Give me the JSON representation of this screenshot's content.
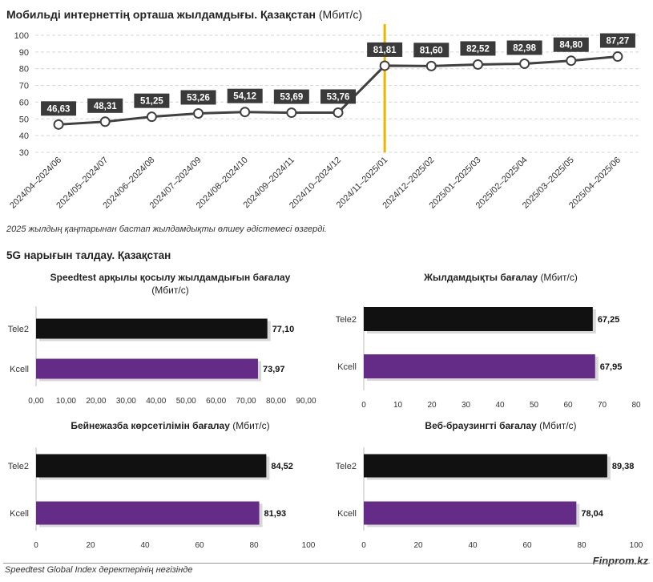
{
  "main_title": "Мобильді интернеттің орташа жылдамдығы. Қазақстан",
  "main_title_unit": "(Мбит/с)",
  "note": "2025 жылдың қаңтарынан бастап жылдамдықты өлшеу әдістемесі өзгерді.",
  "section_title": "5G нарығын талдау. Қазақстан",
  "source": "Speedtest Global Index деректерінің негізінде",
  "brand": "Finprom.kz",
  "colors": {
    "line": "#404040",
    "marker_line": "#f0b400",
    "tele2": "#111111",
    "kcell": "#652c87"
  },
  "chart_data": [
    {
      "type": "line",
      "title": "Мобильді интернеттің орташа жылдамдығы. Қазақстан (Мбит/с)",
      "categories": [
        "2024/04–2024/06",
        "2024/05–2024/07",
        "2024/06–2024/08",
        "2024/07–2024/09",
        "2024/08–2024/10",
        "2024/09–2024/11",
        "2024/10–2024/12",
        "2024/11–2025/01",
        "2024/12–2025/02",
        "2025/01–2025/03",
        "2025/02–2025/04",
        "2025/03–2025/05",
        "2025/04–2025/06"
      ],
      "values": [
        46.63,
        48.31,
        51.25,
        53.26,
        54.12,
        53.69,
        53.76,
        81.81,
        81.6,
        82.52,
        82.98,
        84.8,
        87.27
      ],
      "labels": [
        "46,63",
        "48,31",
        "51,25",
        "53,26",
        "54,12",
        "53,69",
        "53,76",
        "81,81",
        "81,60",
        "82,52",
        "82,98",
        "84,80",
        "87,27"
      ],
      "ylim": [
        30,
        100
      ],
      "yticks": [
        30,
        40,
        50,
        60,
        70,
        80,
        90,
        100
      ],
      "grid": true,
      "vertical_marker_category": "2024/11–2025/01"
    },
    {
      "type": "bar",
      "title": "Speedtest арқылы қосылу жылдамдығын бағалау",
      "unit": "(Мбит/с)",
      "categories": [
        "Tele2",
        "Kcell"
      ],
      "values": [
        77.1,
        73.97
      ],
      "labels": [
        "77,10",
        "73,97"
      ],
      "xlim": [
        0,
        90
      ],
      "xticks": [
        "0,00",
        "10,00",
        "20,00",
        "30,00",
        "40,00",
        "50,00",
        "60,00",
        "70,00",
        "80,00",
        "90,00"
      ]
    },
    {
      "type": "bar",
      "title": "Жылдамдықты бағалау",
      "unit": "(Мбит/с)",
      "categories": [
        "Tele2",
        "Kcell"
      ],
      "values": [
        67.25,
        67.95
      ],
      "labels": [
        "67,25",
        "67,95"
      ],
      "xlim": [
        0,
        80
      ],
      "xticks": [
        "0",
        "10",
        "20",
        "30",
        "40",
        "50",
        "60",
        "70",
        "80"
      ]
    },
    {
      "type": "bar",
      "title": "Бейнежазба көрсетілімін бағалау",
      "unit": "(Мбит/с)",
      "categories": [
        "Tele2",
        "Kcell"
      ],
      "values": [
        84.52,
        81.93
      ],
      "labels": [
        "84,52",
        "81,93"
      ],
      "xlim": [
        0,
        100
      ],
      "xticks": [
        "0",
        "20",
        "40",
        "60",
        "80",
        "100"
      ]
    },
    {
      "type": "bar",
      "title": "Веб-браузингті бағалау",
      "unit": "(Мбит/с)",
      "categories": [
        "Tele2",
        "Kcell"
      ],
      "values": [
        89.38,
        78.04
      ],
      "labels": [
        "89,38",
        "78,04"
      ],
      "xlim": [
        0,
        100
      ],
      "xticks": [
        "0",
        "20",
        "40",
        "60",
        "80",
        "100"
      ]
    }
  ]
}
